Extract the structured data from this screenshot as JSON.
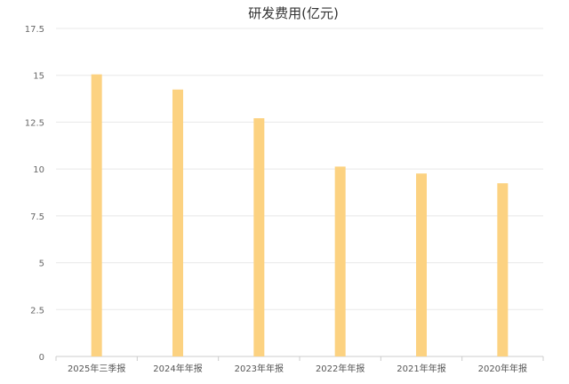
{
  "chart_data": {
    "type": "bar",
    "title": "研发费用(亿元)",
    "categories": [
      "2025年三季报",
      "2024年年报",
      "2023年年报",
      "2022年年报",
      "2021年年报",
      "2020年年报"
    ],
    "values": [
      15.05,
      14.24,
      12.71,
      10.13,
      9.76,
      9.24
    ],
    "ylim": [
      0,
      17.5
    ],
    "yticks": [
      "0",
      "2.5",
      "5",
      "7.5",
      "10",
      "12.5",
      "15",
      "17.5"
    ],
    "grid": true,
    "bar_color": "#fcd281",
    "xlabel": "",
    "ylabel": ""
  }
}
